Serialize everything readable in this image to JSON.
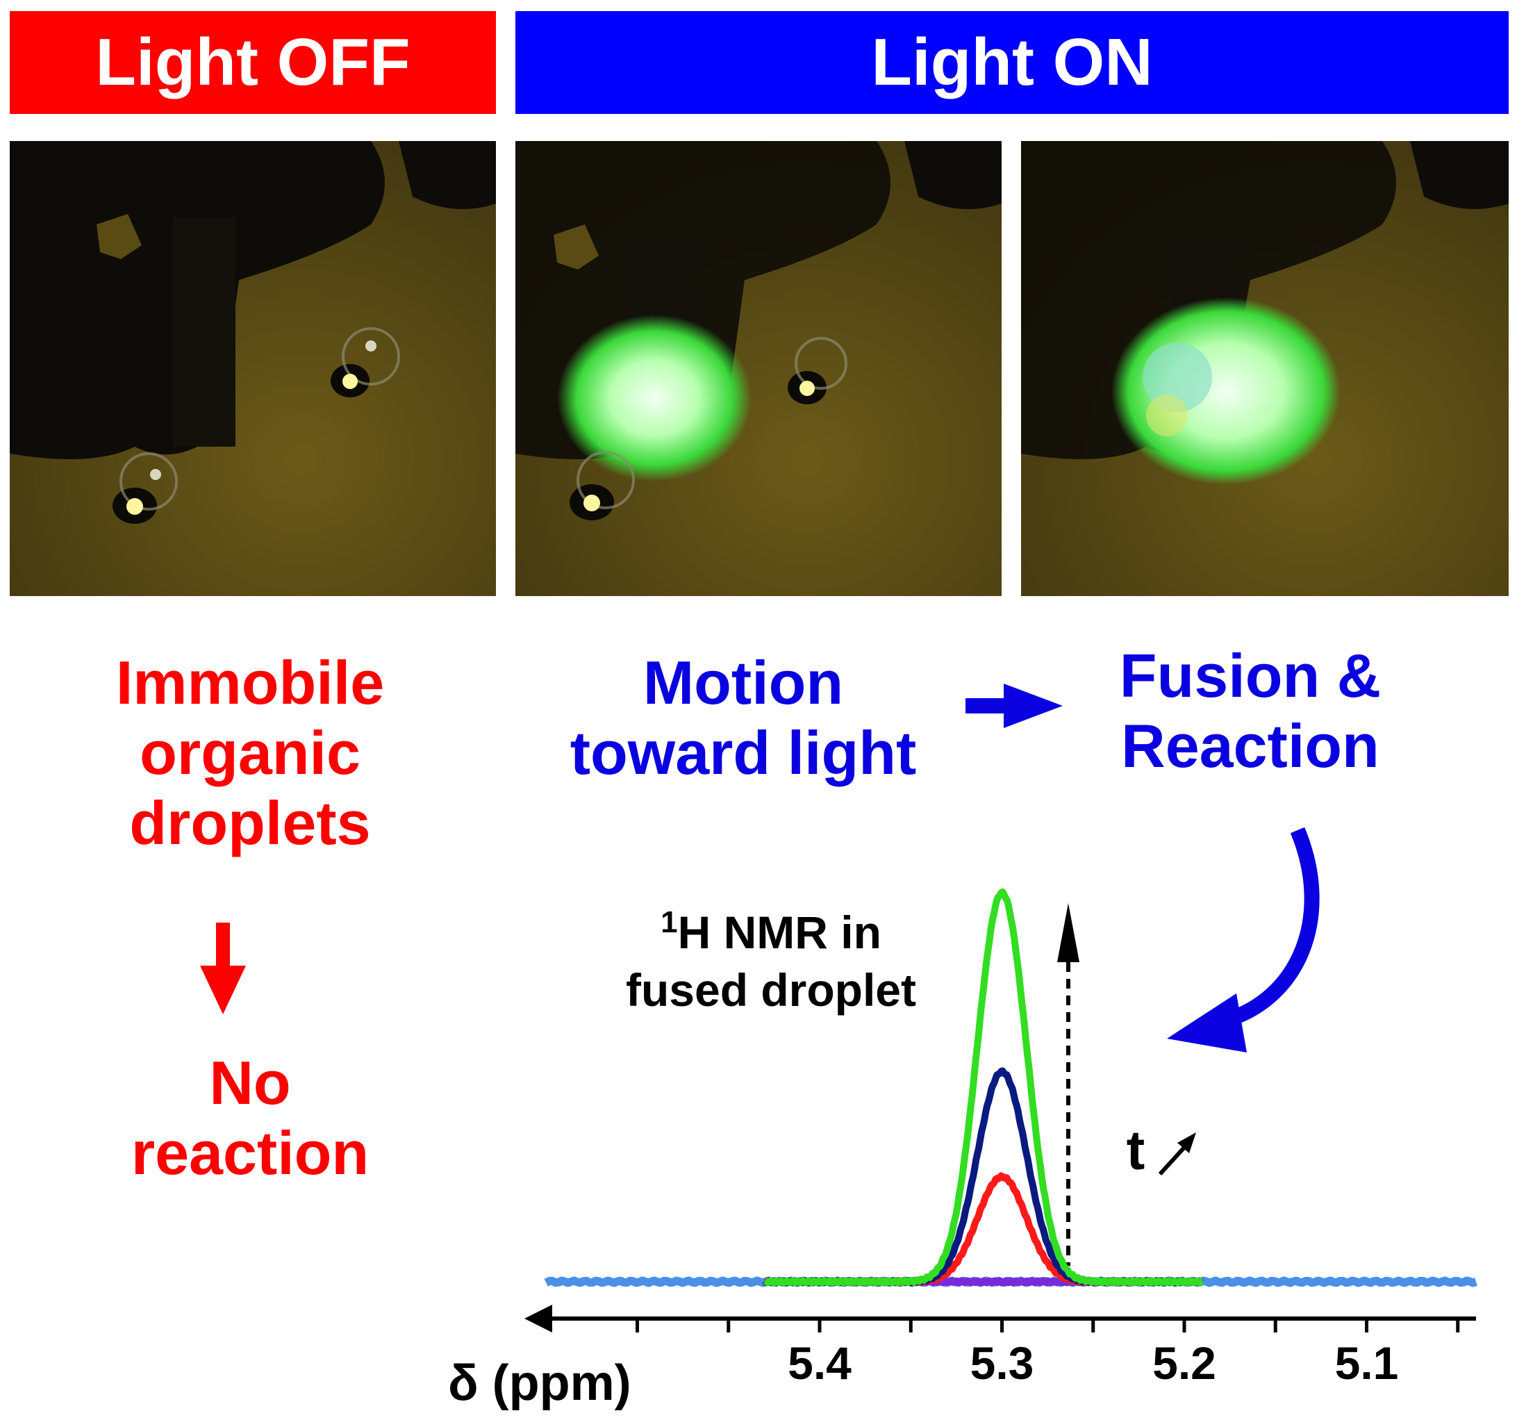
{
  "banners": {
    "off": {
      "text": "Light OFF",
      "color": "#ff0000"
    },
    "on": {
      "text": "Light ON",
      "color": "#0000ff"
    }
  },
  "captions": {
    "immobile": [
      "Immobile",
      "organic",
      "droplets"
    ],
    "no_reaction": [
      "No",
      "reaction"
    ],
    "motion": [
      "Motion",
      "toward light"
    ],
    "fusion": [
      "Fusion &",
      "Reaction"
    ]
  },
  "nmr_label": {
    "sup": "1",
    "rest": "H NMR in",
    "line2": "fused droplet"
  },
  "time_label": "t",
  "colors": {
    "red_text": "#ff0000",
    "blue_text": "#0a00e0",
    "peak_small": "#ff1a1a",
    "peak_mid": "#0a1a80",
    "peak_large": "#33dd22",
    "baseline_wide": "#4a90e8",
    "baseline_mid": "#7a2ad8"
  },
  "chart_data": {
    "type": "line",
    "xlabel": "δ (ppm)",
    "x_ticks": [
      "5.4",
      "5.3",
      "5.2",
      "5.1"
    ],
    "xlim": [
      5.04,
      5.56
    ],
    "x_reversed": true,
    "series": [
      {
        "color": "#4a90e8",
        "x_range": [
          5.04,
          5.55
        ],
        "peak_center": 5.3,
        "peak_height": 0.0
      },
      {
        "color": "#7a2ad8",
        "x_range": [
          5.19,
          5.43
        ],
        "peak_center": 5.3,
        "peak_height": 0.0
      },
      {
        "color": "#ff1a1a",
        "x_range": [
          5.2,
          5.43
        ],
        "peak_center": 5.3,
        "peak_height": 0.27
      },
      {
        "color": "#0a1a80",
        "x_range": [
          5.2,
          5.43
        ],
        "peak_center": 5.3,
        "peak_height": 0.54
      },
      {
        "color": "#33dd22",
        "x_range": [
          5.19,
          5.43
        ],
        "peak_center": 5.3,
        "peak_height": 1.0
      }
    ]
  }
}
